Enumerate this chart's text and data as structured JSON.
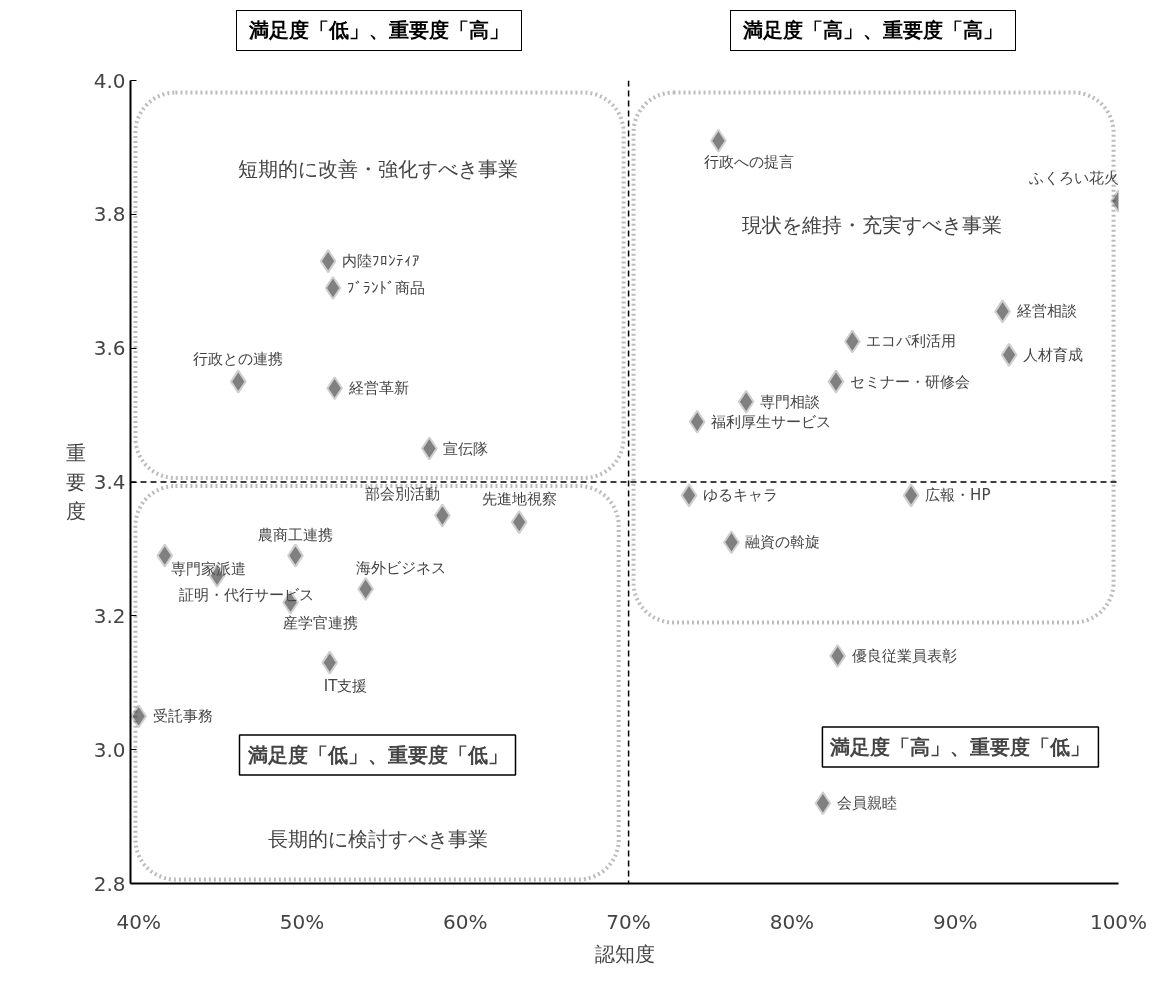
{
  "chart_data": {
    "type": "scatter",
    "xlabel": "認知度",
    "ylabel": "重要度",
    "x": [
      75.5,
      100,
      51.6,
      51.9,
      46.1,
      52.0,
      57.8,
      92.9,
      83.7,
      93.3,
      82.7,
      77.2,
      74.2,
      73.7,
      87.3,
      76.3,
      58.6,
      63.3,
      49.6,
      41.6,
      44.8,
      53.9,
      49.3,
      51.7,
      40.0,
      82.8,
      81.9
    ],
    "series": [
      {
        "color": "#808080",
        "values": [
          3.91,
          3.82,
          3.73,
          3.69,
          3.55,
          3.54,
          3.45,
          3.655,
          3.61,
          3.59,
          3.55,
          3.52,
          3.49,
          3.38,
          3.38,
          3.31,
          3.35,
          3.34,
          3.29,
          3.29,
          3.26,
          3.24,
          3.22,
          3.13,
          3.05,
          3.14,
          2.92
        ]
      }
    ],
    "marker": "diamond",
    "grid": false,
    "xlim": [
      39.5,
      100
    ],
    "ylim": [
      2.8,
      4.0
    ],
    "xticks": [
      {
        "value": 40,
        "label": "40%"
      },
      {
        "value": 50,
        "label": "50%"
      },
      {
        "value": 60,
        "label": "60%"
      },
      {
        "value": 70,
        "label": "70%"
      },
      {
        "value": 80,
        "label": "80%"
      },
      {
        "value": 90,
        "label": "90%"
      },
      {
        "value": 100,
        "label": "100%"
      }
    ],
    "yticks": [
      2.8,
      {
        "value": 3.0,
        "label": "3.0"
      },
      3.2,
      3.4,
      3.6,
      3.8,
      {
        "value": 4.0,
        "label": "4.0"
      }
    ],
    "ref_lines": [
      {
        "axis": "x",
        "value": 70,
        "line_style": "dashed",
        "color": "#000000"
      },
      {
        "axis": "y",
        "value": 3.4,
        "line_style": "dashed",
        "color": "#000000"
      }
    ],
    "annotations": [
      "満足度「低」、重要度「高」",
      "満足度「高」、重要度「高」",
      "満足度「低」、重要度「低」",
      "満足度「高」、重要度「低」",
      "短期的に改善・強化すべき事業",
      "現状を維持・充実すべき事業",
      "長期的に検討すべき事業",
      {
        "text": "行政への提言",
        "x": 75.5,
        "y": 3.91
      },
      {
        "text": "ふくろい花火",
        "x": 100,
        "y": 3.82
      },
      {
        "text": "内陸ﾌﾛﾝﾃｨｱ",
        "x": 51.6,
        "y": 3.73
      },
      {
        "text": "ﾌﾞﾗﾝﾄﾞ商品",
        "x": 51.9,
        "y": 3.69
      },
      {
        "text": "行政との連携",
        "x": 46.1,
        "y": 3.55
      },
      {
        "text": "経営革新",
        "x": 52.0,
        "y": 3.54
      },
      {
        "text": "宣伝隊",
        "x": 57.8,
        "y": 3.45
      },
      {
        "text": "経営相談",
        "x": 92.9,
        "y": 3.655
      },
      {
        "text": "エコパ利活用",
        "x": 83.7,
        "y": 3.61
      },
      {
        "text": "人材育成",
        "x": 93.3,
        "y": 3.59
      },
      {
        "text": "セミナー・研修会",
        "x": 82.7,
        "y": 3.55
      },
      {
        "text": "専門相談",
        "x": 77.2,
        "y": 3.52
      },
      {
        "text": "福利厚生サービス",
        "x": 74.2,
        "y": 3.49
      },
      {
        "text": "ゆるキャラ",
        "x": 73.7,
        "y": 3.38
      },
      {
        "text": "広報・HP",
        "x": 87.3,
        "y": 3.38
      },
      {
        "text": "融資の斡旋",
        "x": 76.3,
        "y": 3.31
      },
      {
        "text": "部会別活動",
        "x": 58.6,
        "y": 3.35
      },
      {
        "text": "先進地視察",
        "x": 63.3,
        "y": 3.34
      },
      {
        "text": "農商工連携",
        "x": 49.6,
        "y": 3.29
      },
      {
        "text": "専門家派遣",
        "x": 41.6,
        "y": 3.29
      },
      {
        "text": "証明・代行サービス",
        "x": 44.8,
        "y": 3.26
      },
      {
        "text": "海外ビジネス",
        "x": 53.9,
        "y": 3.24
      },
      {
        "text": "産学官連携",
        "x": 49.3,
        "y": 3.22
      },
      {
        "text": "IT支援",
        "x": 51.7,
        "y": 3.13
      },
      {
        "text": "受託事務",
        "x": 40.0,
        "y": 3.05
      },
      {
        "text": "優良従業員表彰",
        "x": 82.8,
        "y": 3.14
      },
      {
        "text": "会員親睦",
        "x": 81.9,
        "y": 2.92
      }
    ]
  }
}
